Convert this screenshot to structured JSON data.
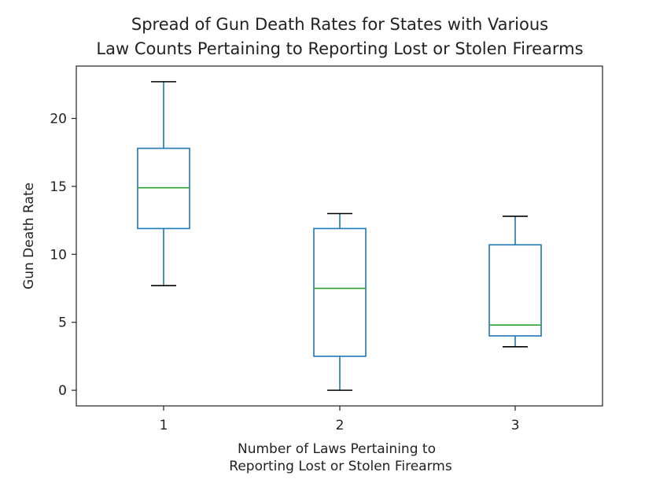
{
  "chart_data": {
    "type": "box",
    "title_lines": [
      "Spread of Gun Death Rates for States with Various",
      "Law Counts Pertaining to Reporting Lost or Stolen Firearms"
    ],
    "xlabel_lines": [
      "Number of Laws Pertaining to",
      "Reporting Lost or Stolen Firearms"
    ],
    "ylabel": "Gun Death Rate",
    "categories": [
      "1",
      "2",
      "3"
    ],
    "boxes": [
      {
        "category": "1",
        "whisker_low": 7.7,
        "q1": 11.9,
        "median": 14.9,
        "q3": 17.8,
        "whisker_high": 22.7
      },
      {
        "category": "2",
        "whisker_low": 0.0,
        "q1": 2.5,
        "median": 7.5,
        "q3": 11.9,
        "whisker_high": 13.0
      },
      {
        "category": "3",
        "whisker_low": 3.2,
        "q1": 4.0,
        "median": 4.8,
        "q3": 10.7,
        "whisker_high": 12.8
      }
    ],
    "yticks": [
      0,
      5,
      10,
      15,
      20
    ],
    "ylim": [
      -1.15,
      23.85
    ],
    "grid": false,
    "colors": {
      "box": "#1f77b4",
      "median": "#2ca02c",
      "whisker_cap": "#000000"
    }
  }
}
